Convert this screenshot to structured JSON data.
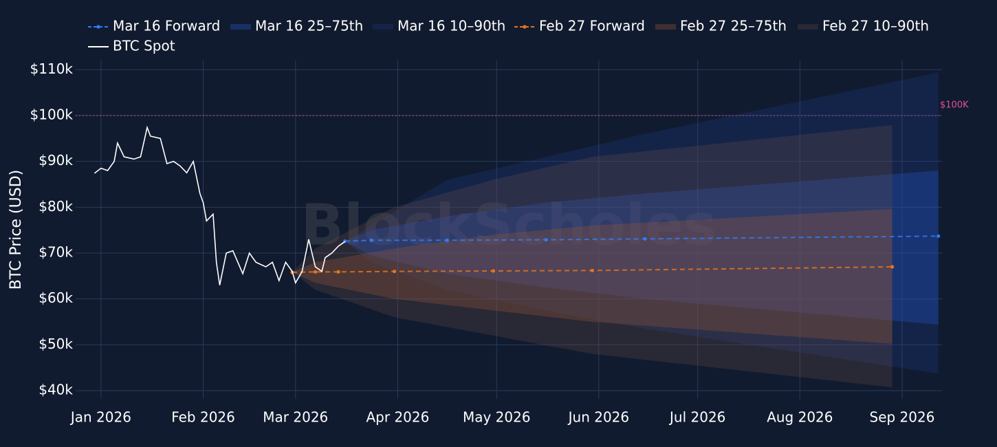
{
  "chart_data": {
    "type": "line",
    "watermark": "BlockScholes",
    "y_axis_label": "BTC Price (USD)",
    "xlim": [
      -7.7,
      255.1
    ],
    "xticks": [
      {
        "value": 0,
        "label": "Jan 2026"
      },
      {
        "value": 31,
        "label": "Feb 2026"
      },
      {
        "value": 59,
        "label": "Mar 2026"
      },
      {
        "value": 90,
        "label": "Apr 2026"
      },
      {
        "value": 120,
        "label": "May 2026"
      },
      {
        "value": 151,
        "label": "Jun 2026"
      },
      {
        "value": 181,
        "label": "Jul 2026"
      },
      {
        "value": 212,
        "label": "Aug 2026"
      },
      {
        "value": 243,
        "label": "Sep 2026"
      }
    ],
    "ylim": [
      38200,
      112000
    ],
    "yticks": [
      {
        "value": 40000,
        "label": "$40k"
      },
      {
        "value": 50000,
        "label": "$50k"
      },
      {
        "value": 60000,
        "label": "$60k"
      },
      {
        "value": 70000,
        "label": "$70k"
      },
      {
        "value": 80000,
        "label": "$80k"
      },
      {
        "value": 90000,
        "label": "$90k"
      },
      {
        "value": 100000,
        "label": "$100k"
      },
      {
        "value": 110000,
        "label": "$110k"
      }
    ],
    "grid": true,
    "reference_line": {
      "value": 100000,
      "label": "$100K",
      "color": "#e0509a"
    },
    "series": [
      {
        "name": "Mar 16 Forward",
        "style": "dashed-markers",
        "color": "#2f7df6",
        "x": [
          74,
          82,
          105,
          135,
          165,
          254
        ],
        "values": [
          72600,
          72800,
          72800,
          72900,
          73100,
          73700
        ]
      },
      {
        "name": "Mar 16 25–75th",
        "style": "band",
        "color": "rgba(37,84,190,0.38)",
        "x": [
          74,
          82,
          105,
          135,
          165,
          254
        ],
        "low": [
          72500,
          69500,
          65500,
          62500,
          60000,
          54400
        ],
        "high": [
          72500,
          75000,
          78000,
          81000,
          83000,
          88000
        ]
      },
      {
        "name": "Mar 16 10–90th",
        "style": "band",
        "color": "rgba(30,70,165,0.22)",
        "x": [
          74,
          82,
          105,
          135,
          165,
          254
        ],
        "low": [
          72500,
          68000,
          62000,
          57500,
          53500,
          43700
        ],
        "high": [
          72500,
          76000,
          86000,
          91000,
          96000,
          109400
        ]
      },
      {
        "name": "Feb 27 Forward",
        "style": "dashed-markers",
        "color": "#e8731f",
        "x": [
          58,
          65,
          72,
          89,
          119,
          149,
          240
        ],
        "values": [
          65800,
          65900,
          65900,
          66000,
          66100,
          66200,
          67000
        ]
      },
      {
        "name": "Feb 27 25–75th",
        "style": "band",
        "color": "rgba(150,85,55,0.35)",
        "x": [
          58,
          65,
          89,
          119,
          149,
          240
        ],
        "low": [
          65800,
          63500,
          60000,
          57500,
          55000,
          50200
        ],
        "high": [
          65800,
          68000,
          71000,
          74000,
          76000,
          79600
        ]
      },
      {
        "name": "Feb 27 10–90th",
        "style": "band",
        "color": "rgba(115,80,70,0.25)",
        "x": [
          58,
          65,
          89,
          119,
          149,
          240
        ],
        "low": [
          65800,
          62000,
          56000,
          52000,
          48000,
          40700
        ],
        "high": [
          65800,
          71000,
          80000,
          86000,
          91000,
          97900
        ]
      },
      {
        "name": "BTC Spot",
        "style": "solid",
        "color": "#ffffff",
        "x": [
          -2,
          0,
          2,
          4,
          5,
          7,
          10,
          12,
          14,
          15,
          18,
          20,
          22,
          24,
          26,
          28,
          30,
          31,
          32,
          34,
          35,
          36,
          38,
          40,
          43,
          45,
          47,
          50,
          52,
          54,
          56,
          58,
          59,
          61,
          63,
          65,
          67,
          68,
          70,
          72,
          74
        ],
        "values": [
          87400,
          88500,
          88000,
          90000,
          94000,
          91000,
          90500,
          91000,
          97400,
          95500,
          95000,
          89500,
          90000,
          89000,
          87500,
          90000,
          83000,
          81000,
          77000,
          78500,
          68000,
          63000,
          70000,
          70500,
          65500,
          70000,
          68000,
          67000,
          68000,
          64000,
          68000,
          66000,
          63500,
          66000,
          73000,
          67000,
          66000,
          69000,
          70000,
          71500,
          72500
        ]
      }
    ]
  }
}
